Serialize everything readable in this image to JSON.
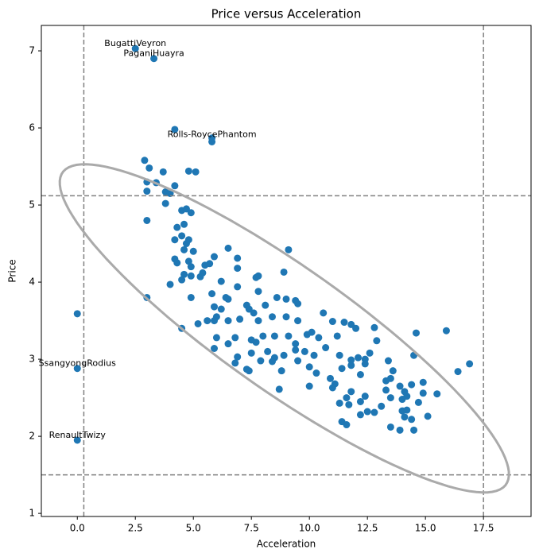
{
  "chart_data": {
    "type": "scatter",
    "title": "Price versus Acceleration",
    "xlabel": "Acceleration",
    "ylabel": "Price",
    "color": "#1f77b4",
    "x": [
      2.5,
      3.3,
      4.2,
      5.8,
      5.8,
      2.9,
      3.1,
      3.7,
      4.8,
      5.1,
      3.0,
      3.4,
      3.0,
      3.8,
      4.0,
      4.2,
      3.8,
      3.0,
      4.5,
      4.7,
      4.9,
      4.3,
      4.6,
      4.2,
      4.5,
      4.7,
      4.8,
      4.6,
      5.0,
      4.2,
      4.3,
      4.8,
      4.9,
      5.5,
      5.7,
      6.5,
      6.9,
      5.9,
      6.2,
      6.9,
      5.4,
      4.6,
      4.5,
      4.9,
      5.3,
      4.0,
      3.0,
      4.9,
      7.7,
      7.8,
      8.9,
      9.1,
      6.9,
      7.8,
      6.4,
      5.8,
      5.9,
      6.2,
      6.5,
      7.3,
      7.4,
      7.6,
      8.1,
      8.6,
      9.0,
      9.4,
      9.5,
      6.0,
      5.9,
      5.6,
      5.2,
      4.5,
      6.5,
      7.0,
      7.8,
      8.4,
      9.0,
      9.5,
      10.6,
      11.0,
      11.5,
      11.8,
      12.0,
      12.8,
      14.6,
      15.9,
      6.0,
      6.8,
      7.5,
      7.7,
      8.0,
      8.5,
      9.1,
      9.4,
      9.9,
      10.1,
      10.4,
      11.2,
      12.9,
      5.9,
      6.5,
      7.5,
      8.2,
      8.5,
      8.9,
      9.4,
      9.8,
      10.2,
      10.7,
      11.3,
      11.8,
      12.1,
      12.4,
      12.6,
      13.4,
      14.5,
      6.9,
      6.8,
      7.4,
      7.3,
      7.9,
      8.4,
      8.8,
      9.5,
      10.0,
      10.3,
      10.9,
      11.1,
      11.4,
      11.8,
      12.4,
      12.2,
      13.3,
      13.5,
      13.6,
      13.9,
      14.1,
      14.4,
      14.9,
      16.4,
      16.9,
      8.7,
      10.0,
      11.0,
      11.6,
      11.8,
      12.2,
      12.4,
      13.3,
      13.5,
      14.0,
      14.2,
      14.9,
      15.5,
      11.3,
      11.7,
      12.5,
      13.1,
      14.0,
      14.2,
      14.7,
      11.4,
      11.6,
      12.2,
      12.8,
      13.5,
      14.1,
      14.4,
      15.1,
      13.9,
      14.5,
      0,
      0,
      0
    ],
    "values": [
      7.03,
      6.9,
      5.98,
      5.87,
      5.82,
      5.58,
      5.48,
      5.43,
      5.44,
      5.43,
      5.3,
      5.29,
      5.18,
      5.17,
      5.15,
      5.25,
      5.02,
      4.8,
      4.93,
      4.95,
      4.9,
      4.71,
      4.75,
      4.55,
      4.6,
      4.5,
      4.55,
      4.42,
      4.4,
      4.3,
      4.25,
      4.27,
      4.2,
      4.22,
      4.24,
      4.44,
      4.31,
      4.33,
      4.01,
      4.18,
      4.12,
      4.1,
      4.03,
      4.08,
      4.07,
      3.97,
      3.8,
      3.8,
      4.06,
      4.08,
      4.13,
      4.42,
      3.94,
      3.88,
      3.8,
      3.85,
      3.68,
      3.65,
      3.78,
      3.7,
      3.65,
      3.6,
      3.7,
      3.8,
      3.78,
      3.76,
      3.72,
      3.55,
      3.5,
      3.5,
      3.46,
      3.4,
      3.5,
      3.52,
      3.5,
      3.55,
      3.55,
      3.5,
      3.6,
      3.49,
      3.48,
      3.45,
      3.4,
      3.41,
      3.34,
      3.37,
      3.28,
      3.28,
      3.25,
      3.22,
      3.3,
      3.3,
      3.3,
      3.2,
      3.32,
      3.35,
      3.28,
      3.3,
      3.24,
      3.14,
      3.2,
      3.08,
      3.1,
      3.02,
      3.05,
      3.12,
      3.1,
      3.05,
      3.15,
      3.05,
      2.99,
      3.02,
      3.0,
      3.08,
      2.98,
      3.05,
      3.03,
      2.95,
      2.85,
      2.87,
      2.98,
      2.97,
      2.85,
      2.98,
      2.9,
      2.82,
      2.75,
      2.68,
      2.88,
      2.92,
      2.94,
      2.8,
      2.72,
      2.75,
      2.85,
      2.65,
      2.58,
      2.67,
      2.7,
      2.84,
      2.94,
      2.61,
      2.65,
      2.63,
      2.5,
      2.58,
      2.45,
      2.52,
      2.6,
      2.5,
      2.48,
      2.52,
      2.56,
      2.55,
      2.43,
      2.41,
      2.32,
      2.39,
      2.33,
      2.34,
      2.44,
      2.19,
      2.15,
      2.28,
      2.31,
      2.12,
      2.25,
      2.22,
      2.26,
      2.08,
      2.08,
      3.59,
      2.88,
      1.95
    ],
    "annotations": [
      {
        "text": "BugattiVeyron",
        "x": 2.5,
        "y": 7.03
      },
      {
        "text": "PaganiHuayra",
        "x": 3.3,
        "y": 6.9
      },
      {
        "text": "Rolls-RoycePhantom",
        "x": 5.8,
        "y": 5.85
      },
      {
        "text": "SsangyongRodius",
        "x": 0,
        "y": 2.88
      },
      {
        "text": "RenaultTwizy",
        "x": 0,
        "y": 1.95
      }
    ],
    "vlines": [
      0.28,
      17.5
    ],
    "hlines": [
      5.12,
      1.5
    ],
    "line_color": "#808080",
    "ellipse": {
      "center": [
        8.92,
        3.4
      ],
      "axis1": [
        9.6,
        -2.0
      ],
      "axis2": [
        -1.22,
        -0.73
      ],
      "color": "#aaaaaa"
    },
    "xlim": [
      -1.55,
      19.55
    ],
    "ylim": [
      0.96,
      7.33
    ],
    "xticks": [
      {
        "value": 0,
        "label": "0.0"
      },
      2.5,
      {
        "value": 5,
        "label": "5.0"
      },
      7.5,
      {
        "value": 10,
        "label": "10.0"
      },
      12.5,
      {
        "value": 15,
        "label": "15.0"
      },
      17.5
    ],
    "yticks": [
      1,
      2,
      3,
      4,
      5,
      6,
      7
    ]
  }
}
